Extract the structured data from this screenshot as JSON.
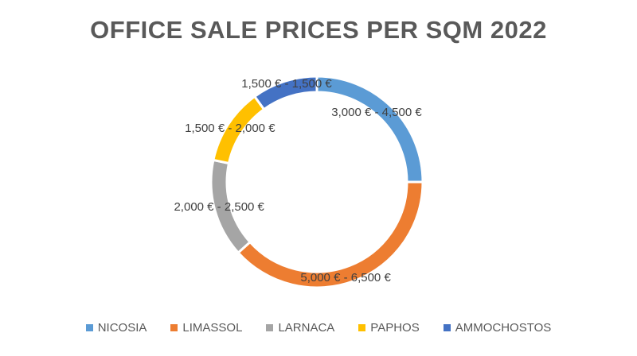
{
  "chart_data": {
    "type": "pie",
    "variant": "donut",
    "title": "OFFICE SALE PRICES PER SQM 2022",
    "categories": [
      "NICOSIA",
      "LIMASSOL",
      "LARNACA",
      "PAPHOS",
      "AMMOCHOSTOS"
    ],
    "values": [
      3750,
      5750,
      2250,
      1750,
      1500
    ],
    "data_labels": [
      "3,000 € - 4,500 €",
      "5,000 € - 6,500 €",
      "2,000 € - 2,500 €",
      "1,500 € - 2,000 €",
      "1,500 € - 1,500 €"
    ],
    "colors": [
      "#5b9bd5",
      "#ed7d31",
      "#a5a5a5",
      "#ffc000",
      "#4472c4"
    ],
    "legend_position": "bottom",
    "start_angle_deg": 0,
    "direction": "clockwise"
  }
}
